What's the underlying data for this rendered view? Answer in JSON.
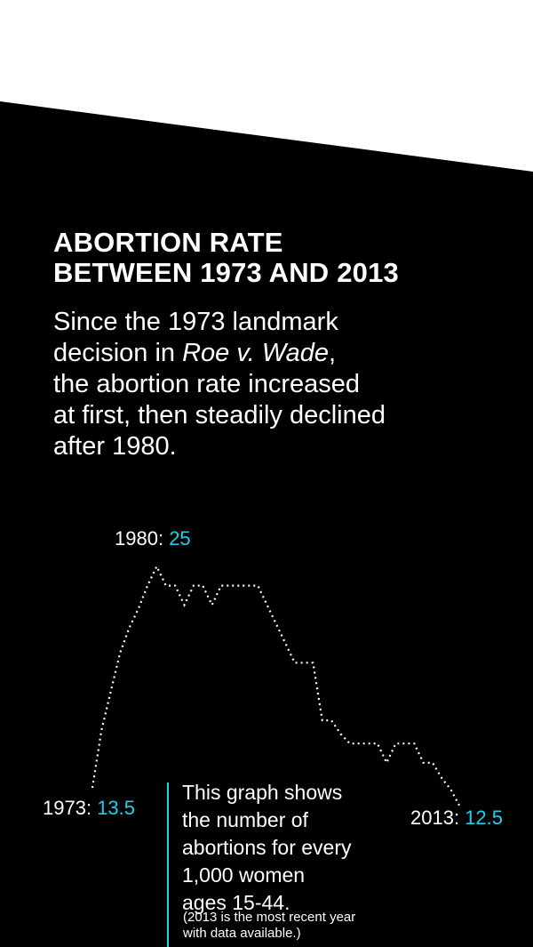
{
  "title_lines": [
    "ABORTION RATE",
    "BETWEEN 1973 AND 2013"
  ],
  "body": {
    "line1": "Since the 1973 landmark",
    "line2_pre": "decision in ",
    "line2_italic": "Roe v. Wade",
    "line2_post": ",",
    "line3": "the abortion rate increased",
    "line4": "at first, then steadily declined",
    "line5": "after 1980."
  },
  "note": {
    "lines": [
      "This graph shows",
      "the number of",
      "abortions for every",
      "1,000 women",
      "ages 15-44."
    ],
    "small_lines": [
      "(2013 is the most recent year",
      "with data available.)"
    ]
  },
  "colors": {
    "accent": "#1fd1e6",
    "background": "#000000",
    "top_band": "#ffffff",
    "line": "#ffffff"
  },
  "chart_data": {
    "type": "line",
    "line_style": "dotted",
    "x": [
      1973,
      1974,
      1975,
      1976,
      1977,
      1978,
      1979,
      1980,
      1981,
      1982,
      1983,
      1984,
      1985,
      1986,
      1987,
      1988,
      1989,
      1990,
      1991,
      1992,
      1993,
      1994,
      1995,
      1996,
      1997,
      1998,
      1999,
      2000,
      2001,
      2002,
      2003,
      2004,
      2005,
      2006,
      2007,
      2008,
      2009,
      2010,
      2011,
      2012,
      2013
    ],
    "values": [
      13.5,
      16.5,
      18.5,
      20.5,
      21.8,
      22.8,
      24,
      25,
      24,
      24,
      23,
      24,
      24,
      23,
      24,
      24,
      24,
      24,
      24,
      23,
      22,
      21,
      20,
      20,
      20,
      17,
      17,
      16.3,
      15.8,
      15.8,
      15.8,
      15.8,
      14.8,
      15.8,
      15.8,
      15.8,
      14.8,
      14.8,
      14,
      13.4,
      12.5
    ],
    "annotations": [
      {
        "year_label": "1973:",
        "value_label": "13.5"
      },
      {
        "year_label": "1980:",
        "value_label": "25"
      },
      {
        "year_label": "2013:",
        "value_label": "12.5"
      }
    ],
    "axes_visible": false,
    "grid": false
  }
}
